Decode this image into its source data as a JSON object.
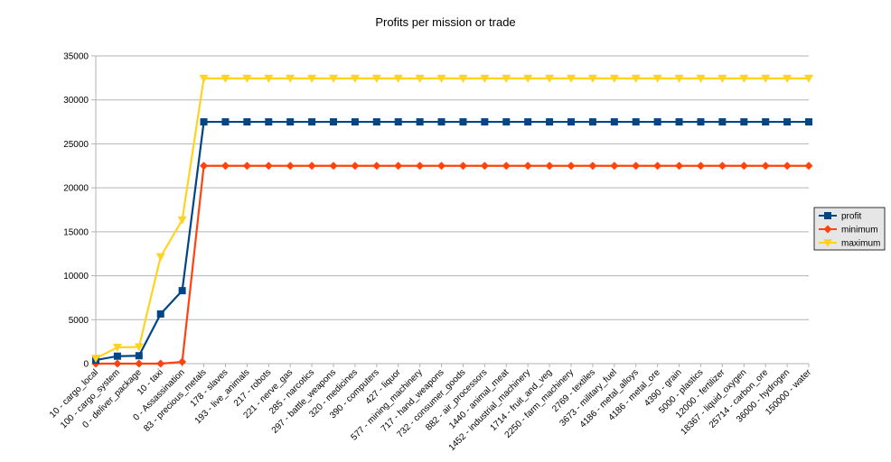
{
  "chart_data": {
    "type": "line",
    "title": "Profits per mission or trade",
    "xlabel": "",
    "ylabel": "",
    "ylim": [
      0,
      35000
    ],
    "yticks": [
      0,
      5000,
      10000,
      15000,
      20000,
      25000,
      30000,
      35000
    ],
    "grid": "horizontal",
    "legend_position": "right",
    "categories": [
      "10 - cargo_local",
      "100 - cargo_system",
      "0 - deliver_package",
      "10 - taxi",
      "0 - Assassination",
      "83 - precious_metals",
      "178 - slaves",
      "193 - live_animals",
      "217 - robots",
      "221 - nerve_gas",
      "285 - narcotics",
      "297 - battle_weapons",
      "320 - medicines",
      "390 - computers",
      "427 - liquor",
      "577 - mining_machinery",
      "717 - hand_weapons",
      "732 - consumer_goods",
      "882 - air_processors",
      "1440 - animal_meat",
      "1452 - industrial_machinery",
      "1714 - fruit_and_veg",
      "2250 - farm_machinery",
      "2769 - textiles",
      "3673 - military_fuel",
      "4186 - metal_alloys",
      "4186 - metal_ore",
      "4390 - grain",
      "5000 - plastics",
      "12000 - fertilizer",
      "18367 - liquid_oxygen",
      "25714 - carbon_ore",
      "36000 - hydrogen",
      "150000 - water"
    ],
    "series": [
      {
        "name": "profit",
        "color": "#004586",
        "marker": "square",
        "values": [
          400,
          850,
          900,
          5650,
          8300,
          27500,
          27500,
          27500,
          27500,
          27500,
          27500,
          27500,
          27500,
          27500,
          27500,
          27500,
          27500,
          27500,
          27500,
          27500,
          27500,
          27500,
          27500,
          27500,
          27500,
          27500,
          27500,
          27500,
          27500,
          27500,
          27500,
          27500,
          27500,
          27500
        ]
      },
      {
        "name": "minimum",
        "color": "#ff420e",
        "marker": "diamond",
        "values": [
          0,
          0,
          0,
          0,
          200,
          22500,
          22500,
          22500,
          22500,
          22500,
          22500,
          22500,
          22500,
          22500,
          22500,
          22500,
          22500,
          22500,
          22500,
          22500,
          22500,
          22500,
          22500,
          22500,
          22500,
          22500,
          22500,
          22500,
          22500,
          22500,
          22500,
          22500,
          22500,
          22500
        ]
      },
      {
        "name": "maximum",
        "color": "#ffd320",
        "marker": "triangle-down",
        "values": [
          600,
          1850,
          1900,
          12150,
          16350,
          32450,
          32450,
          32450,
          32450,
          32450,
          32450,
          32450,
          32450,
          32450,
          32450,
          32450,
          32450,
          32450,
          32450,
          32450,
          32450,
          32450,
          32450,
          32450,
          32450,
          32450,
          32450,
          32450,
          32450,
          32450,
          32450,
          32450,
          32450,
          32450
        ]
      }
    ]
  }
}
